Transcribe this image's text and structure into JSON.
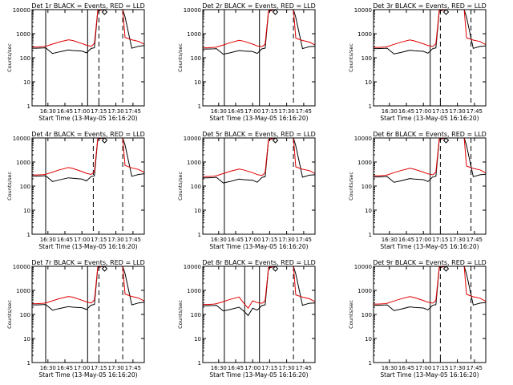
{
  "colors": {
    "events": "#000000",
    "lld": "#e00000",
    "background": "#ffffff"
  },
  "xlabel": "Start Time (13-May-05 16:16:20)",
  "ylabel": "Counts/sec",
  "chart_data": [
    {
      "type": "line",
      "title": "Det 1r  BLACK = Events, RED = LLD",
      "y_scale": "log",
      "ylim": [
        1,
        10000
      ],
      "yticks": [
        "1",
        "10",
        "100",
        "1000",
        "10000"
      ],
      "xticks": [
        "16:30",
        "16:45",
        "17:00",
        "17:15",
        "17:30",
        "17:45"
      ],
      "x": [
        "16:16",
        "16:20",
        "16:26",
        "16:28",
        "16:34",
        "16:40",
        "16:48",
        "16:52",
        "17:00",
        "17:04",
        "17:08",
        "17:09",
        "17:11",
        "17:14",
        "17:20",
        "17:28",
        "17:32",
        "17:36",
        "17:38",
        "17:44",
        "17:50",
        "17:55"
      ],
      "solid_vlines": [
        "16:28",
        "17:05"
      ],
      "dashed_vlines": [
        "17:15",
        "17:36"
      ],
      "series": [
        {
          "name": "Events",
          "values": [
            250,
            250,
            255,
            260,
            150,
            175,
            210,
            200,
            190,
            160,
            240,
            250,
            260,
            9000,
            11000,
            11000,
            11000,
            11000,
            5000,
            250,
            300,
            320
          ]
        },
        {
          "name": "LLD",
          "values": [
            280,
            280,
            290,
            300,
            370,
            450,
            560,
            520,
            390,
            330,
            300,
            320,
            400,
            9500,
            11000,
            11000,
            11000,
            11000,
            700,
            560,
            480,
            360
          ]
        }
      ]
    },
    {
      "type": "line",
      "title": "Det 2r  BLACK = Events, RED = LLD",
      "y_scale": "log",
      "ylim": [
        1,
        10000
      ],
      "yticks": [
        "1",
        "10",
        "100",
        "1000",
        "10000"
      ],
      "xticks": [
        "16:30",
        "16:45",
        "17:00",
        "17:15",
        "17:30",
        "17:45"
      ],
      "x": [
        "16:16",
        "16:20",
        "16:26",
        "16:28",
        "16:34",
        "16:40",
        "16:48",
        "16:52",
        "17:00",
        "17:04",
        "17:08",
        "17:09",
        "17:11",
        "17:14",
        "17:20",
        "17:28",
        "17:32",
        "17:36",
        "17:38",
        "17:44",
        "17:50",
        "17:55"
      ],
      "solid_vlines": [
        "16:35",
        "17:06"
      ],
      "dashed_vlines": [
        "17:36"
      ],
      "series": [
        {
          "name": "Events",
          "values": [
            230,
            230,
            235,
            240,
            140,
            160,
            200,
            190,
            180,
            150,
            230,
            240,
            250,
            8500,
            11000,
            11000,
            11000,
            11000,
            4800,
            240,
            290,
            300
          ]
        },
        {
          "name": "LLD",
          "values": [
            260,
            260,
            270,
            280,
            340,
            420,
            530,
            490,
            370,
            310,
            290,
            300,
            380,
            9000,
            11000,
            11000,
            11000,
            11000,
            650,
            520,
            450,
            340
          ]
        }
      ]
    },
    {
      "type": "line",
      "title": "Det 3r  BLACK = Events, RED = LLD",
      "y_scale": "log",
      "ylim": [
        1,
        10000
      ],
      "yticks": [
        "1",
        "10",
        "100",
        "1000",
        "10000"
      ],
      "xticks": [
        "16:30",
        "16:45",
        "17:00",
        "17:15",
        "17:30",
        "17:45"
      ],
      "x": [
        "16:16",
        "16:20",
        "16:26",
        "16:28",
        "16:34",
        "16:40",
        "16:48",
        "16:52",
        "17:00",
        "17:04",
        "17:08",
        "17:09",
        "17:11",
        "17:14",
        "17:20",
        "17:28",
        "17:32",
        "17:36",
        "17:38",
        "17:44",
        "17:50",
        "17:55"
      ],
      "solid_vlines": [
        "17:06"
      ],
      "dashed_vlines": [
        "17:15",
        "17:42"
      ],
      "series": [
        {
          "name": "Events",
          "values": [
            240,
            240,
            245,
            250,
            145,
            165,
            205,
            195,
            185,
            155,
            235,
            245,
            255,
            8800,
            11000,
            11000,
            11000,
            11000,
            4900,
            245,
            295,
            310
          ]
        },
        {
          "name": "LLD",
          "values": [
            270,
            270,
            280,
            290,
            360,
            440,
            550,
            500,
            380,
            320,
            295,
            310,
            390,
            9200,
            11000,
            11000,
            11000,
            11000,
            680,
            540,
            470,
            350
          ]
        }
      ]
    },
    {
      "type": "line",
      "title": "Det 4r  BLACK = Events, RED = LLD",
      "y_scale": "log",
      "ylim": [
        1,
        10000
      ],
      "yticks": [
        "1",
        "10",
        "100",
        "1000",
        "10000"
      ],
      "xticks": [
        "16:30",
        "16:45",
        "17:00",
        "17:15",
        "17:30",
        "17:45"
      ],
      "x": [
        "16:16",
        "16:20",
        "16:26",
        "16:28",
        "16:34",
        "16:40",
        "16:48",
        "16:52",
        "17:00",
        "17:04",
        "17:08",
        "17:09",
        "17:11",
        "17:14",
        "17:20",
        "17:28",
        "17:32",
        "17:36",
        "17:38",
        "17:44",
        "17:50",
        "17:55"
      ],
      "solid_vlines": [
        "16:28"
      ],
      "dashed_vlines": [
        "17:10",
        "17:36"
      ],
      "series": [
        {
          "name": "Events",
          "values": [
            260,
            260,
            265,
            270,
            155,
            180,
            220,
            210,
            195,
            165,
            245,
            255,
            265,
            9200,
            11000,
            11000,
            11000,
            11000,
            5100,
            255,
            305,
            325
          ]
        },
        {
          "name": "LLD",
          "values": [
            290,
            290,
            300,
            310,
            380,
            470,
            590,
            540,
            400,
            340,
            305,
            325,
            410,
            9600,
            11000,
            11000,
            11000,
            11000,
            720,
            570,
            490,
            370
          ]
        }
      ]
    },
    {
      "type": "line",
      "title": "Det 5r  BLACK = Events, RED = LLD",
      "y_scale": "log",
      "ylim": [
        1,
        10000
      ],
      "yticks": [
        "1",
        "10",
        "100",
        "1000",
        "10000"
      ],
      "xticks": [
        "16:30",
        "16:45",
        "17:00",
        "17:15",
        "17:30",
        "17:45"
      ],
      "x": [
        "16:16",
        "16:20",
        "16:26",
        "16:28",
        "16:34",
        "16:40",
        "16:48",
        "16:52",
        "17:00",
        "17:04",
        "17:08",
        "17:09",
        "17:11",
        "17:14",
        "17:20",
        "17:28",
        "17:32",
        "17:36",
        "17:38",
        "17:44",
        "17:50",
        "17:55"
      ],
      "solid_vlines": [
        "16:35"
      ],
      "dashed_vlines": [
        "17:36"
      ],
      "series": [
        {
          "name": "Events",
          "values": [
            220,
            220,
            225,
            230,
            135,
            155,
            195,
            185,
            175,
            145,
            225,
            235,
            245,
            8300,
            11000,
            11000,
            11000,
            11000,
            4700,
            235,
            285,
            295
          ]
        },
        {
          "name": "LLD",
          "values": [
            250,
            250,
            260,
            270,
            330,
            410,
            510,
            470,
            360,
            300,
            280,
            290,
            370,
            8800,
            11000,
            11000,
            11000,
            11000,
            630,
            500,
            440,
            330
          ]
        }
      ]
    },
    {
      "type": "line",
      "title": "Det 6r  BLACK = Events, RED = LLD",
      "y_scale": "log",
      "ylim": [
        1,
        10000
      ],
      "yticks": [
        "1",
        "10",
        "100",
        "1000",
        "10000"
      ],
      "xticks": [
        "16:30",
        "16:45",
        "17:00",
        "17:15",
        "17:30",
        "17:45"
      ],
      "x": [
        "16:16",
        "16:20",
        "16:26",
        "16:28",
        "16:34",
        "16:40",
        "16:48",
        "16:52",
        "17:00",
        "17:04",
        "17:08",
        "17:09",
        "17:11",
        "17:14",
        "17:20",
        "17:28",
        "17:32",
        "17:36",
        "17:38",
        "17:44",
        "17:50",
        "17:55"
      ],
      "solid_vlines": [
        "17:06"
      ],
      "dashed_vlines": [
        "17:15",
        "17:42"
      ],
      "series": [
        {
          "name": "Events",
          "values": [
            240,
            240,
            245,
            250,
            145,
            165,
            205,
            195,
            185,
            155,
            235,
            245,
            255,
            8800,
            11000,
            11000,
            11000,
            11000,
            4900,
            245,
            295,
            310
          ]
        },
        {
          "name": "LLD",
          "values": [
            270,
            270,
            280,
            290,
            360,
            440,
            550,
            500,
            380,
            320,
            295,
            310,
            390,
            9200,
            11000,
            11000,
            11000,
            11000,
            680,
            540,
            470,
            350
          ]
        }
      ]
    },
    {
      "type": "line",
      "title": "Det 7r  BLACK = Events, RED = LLD",
      "y_scale": "log",
      "ylim": [
        1,
        10000
      ],
      "yticks": [
        "1",
        "10",
        "100",
        "1000",
        "10000"
      ],
      "xticks": [
        "16:30",
        "16:45",
        "17:00",
        "17:15",
        "17:30",
        "17:45"
      ],
      "x": [
        "16:16",
        "16:20",
        "16:26",
        "16:28",
        "16:34",
        "16:40",
        "16:48",
        "16:52",
        "17:00",
        "17:04",
        "17:08",
        "17:09",
        "17:11",
        "17:14",
        "17:20",
        "17:28",
        "17:32",
        "17:36",
        "17:38",
        "17:44",
        "17:50",
        "17:55"
      ],
      "solid_vlines": [
        "16:28",
        "17:05"
      ],
      "dashed_vlines": [
        "17:15",
        "17:36"
      ],
      "series": [
        {
          "name": "Events",
          "values": [
            250,
            250,
            255,
            260,
            150,
            175,
            210,
            200,
            190,
            160,
            240,
            250,
            260,
            9000,
            11000,
            11000,
            11000,
            11000,
            5000,
            250,
            300,
            320
          ]
        },
        {
          "name": "LLD",
          "values": [
            280,
            280,
            290,
            300,
            370,
            450,
            560,
            520,
            390,
            330,
            300,
            320,
            400,
            9500,
            11000,
            11000,
            11000,
            11000,
            700,
            560,
            480,
            360
          ]
        }
      ]
    },
    {
      "type": "line",
      "title": "Det 8r  BLACK = Events, RED = LLD",
      "y_scale": "log",
      "ylim": [
        1,
        10000
      ],
      "yticks": [
        "1",
        "10",
        "100",
        "1000",
        "10000"
      ],
      "xticks": [
        "16:30",
        "16:45",
        "17:00",
        "17:15",
        "17:30",
        "17:45"
      ],
      "x": [
        "16:16",
        "16:20",
        "16:26",
        "16:28",
        "16:34",
        "16:40",
        "16:48",
        "16:52",
        "16:56",
        "17:00",
        "17:04",
        "17:08",
        "17:09",
        "17:11",
        "17:14",
        "17:20",
        "17:28",
        "17:32",
        "17:36",
        "17:38",
        "17:44",
        "17:50",
        "17:55"
      ],
      "solid_vlines": [
        "16:35",
        "16:53",
        "17:06"
      ],
      "dashed_vlines": [
        "17:36"
      ],
      "series": [
        {
          "name": "Events",
          "values": [
            230,
            230,
            235,
            240,
            140,
            160,
            200,
            140,
            90,
            180,
            150,
            230,
            240,
            250,
            8500,
            11000,
            11000,
            11000,
            11000,
            4800,
            240,
            290,
            300
          ]
        },
        {
          "name": "LLD",
          "values": [
            260,
            260,
            270,
            280,
            340,
            420,
            530,
            300,
            180,
            370,
            310,
            290,
            300,
            380,
            9000,
            11000,
            11000,
            11000,
            11000,
            650,
            520,
            450,
            340
          ]
        }
      ]
    },
    {
      "type": "line",
      "title": "Det 9r  BLACK = Events, RED = LLD",
      "y_scale": "log",
      "ylim": [
        1,
        10000
      ],
      "yticks": [
        "1",
        "10",
        "100",
        "1000",
        "10000"
      ],
      "xticks": [
        "16:30",
        "16:45",
        "17:00",
        "17:15",
        "17:30",
        "17:45"
      ],
      "x": [
        "16:16",
        "16:20",
        "16:26",
        "16:28",
        "16:34",
        "16:40",
        "16:48",
        "16:52",
        "17:00",
        "17:04",
        "17:08",
        "17:09",
        "17:11",
        "17:14",
        "17:20",
        "17:28",
        "17:32",
        "17:36",
        "17:38",
        "17:44",
        "17:50",
        "17:55"
      ],
      "solid_vlines": [
        "17:06"
      ],
      "dashed_vlines": [
        "17:15",
        "17:42"
      ],
      "series": [
        {
          "name": "Events",
          "values": [
            240,
            240,
            245,
            250,
            145,
            165,
            205,
            195,
            185,
            155,
            235,
            245,
            255,
            8800,
            11000,
            11000,
            11000,
            11000,
            4900,
            245,
            295,
            310
          ]
        },
        {
          "name": "LLD",
          "values": [
            270,
            270,
            280,
            290,
            360,
            440,
            550,
            500,
            380,
            320,
            295,
            310,
            390,
            9200,
            11000,
            11000,
            11000,
            11000,
            680,
            540,
            470,
            350
          ]
        }
      ]
    }
  ]
}
